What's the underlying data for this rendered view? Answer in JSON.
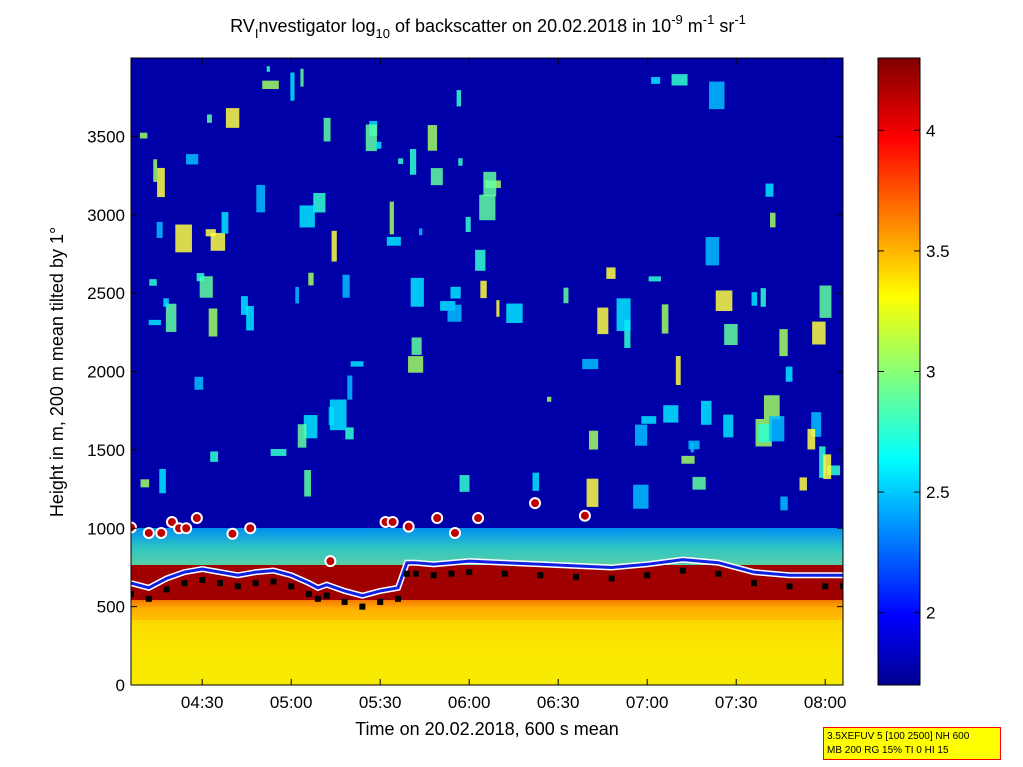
{
  "chart_data": {
    "type": "heatmap",
    "title_parts": {
      "prefix": "RV",
      "sub1": "I",
      "mid": "nvestigator log",
      "sub2": "10",
      "mid2": " of backscatter on 20.02.2018 in 10",
      "sup1": "-9",
      "unit_m": " m",
      "sup2": "-1",
      "unit_sr": " sr",
      "sup3": "-1"
    },
    "xlabel": "Time on 20.02.2018, 600 s mean",
    "ylabel": "Height in m, 200 m mean tilted by 1°",
    "x_ticks": [
      "04:30",
      "05:00",
      "05:30",
      "06:00",
      "06:30",
      "07:00",
      "07:30",
      "08:00"
    ],
    "x_tick_hours": [
      4.5,
      5.0,
      5.5,
      6.0,
      6.5,
      7.0,
      7.5,
      8.0
    ],
    "xlim_hours": [
      4.1,
      8.1
    ],
    "y_ticks": [
      "0",
      "500",
      "1000",
      "1500",
      "2000",
      "2500",
      "3000",
      "3500"
    ],
    "y_tick_values": [
      0,
      500,
      1000,
      1500,
      2000,
      2500,
      3000,
      3500
    ],
    "ylim": [
      0,
      4000
    ],
    "colorbar": {
      "ticks": [
        "2",
        "2.5",
        "3",
        "3.5",
        "4"
      ],
      "tick_values": [
        2.0,
        2.5,
        3.0,
        3.5,
        4.0
      ],
      "range": [
        1.7,
        4.3
      ],
      "colormap": "jet"
    },
    "cloud_base_markers": {
      "hours": [
        4.1,
        4.2,
        4.27,
        4.33,
        4.37,
        4.41,
        4.47,
        4.67,
        4.77,
        5.22,
        5.53,
        5.57,
        5.66,
        5.82,
        5.92,
        6.05,
        6.37,
        6.65
      ],
      "heights_m": [
        1005,
        970,
        970,
        1040,
        1000,
        1000,
        1065,
        965,
        1000,
        790,
        1040,
        1040,
        1010,
        1065,
        970,
        1065,
        1160,
        1080
      ]
    },
    "boundary_layer_line": {
      "hours": [
        4.1,
        4.2,
        4.3,
        4.4,
        4.5,
        4.6,
        4.7,
        4.8,
        4.9,
        5.0,
        5.1,
        5.15,
        5.2,
        5.3,
        5.4,
        5.5,
        5.6,
        5.65,
        5.7,
        5.8,
        5.9,
        6.0,
        6.2,
        6.4,
        6.6,
        6.8,
        7.0,
        7.2,
        7.4,
        7.6,
        7.8,
        8.0,
        8.1
      ],
      "heights_m": [
        650,
        620,
        680,
        720,
        740,
        720,
        700,
        720,
        730,
        700,
        650,
        620,
        640,
        600,
        570,
        600,
        620,
        780,
        780,
        770,
        780,
        790,
        780,
        770,
        760,
        750,
        770,
        800,
        780,
        720,
        700,
        700,
        700
      ]
    },
    "low_layer_heights_m": [
      560,
      520,
      500,
      520
    ]
  },
  "info_box": {
    "line1": "3.5XEFUV 5 [100 2500] NH 600",
    "line2": "MB 200 RG 15% TI 0 HI 15"
  }
}
